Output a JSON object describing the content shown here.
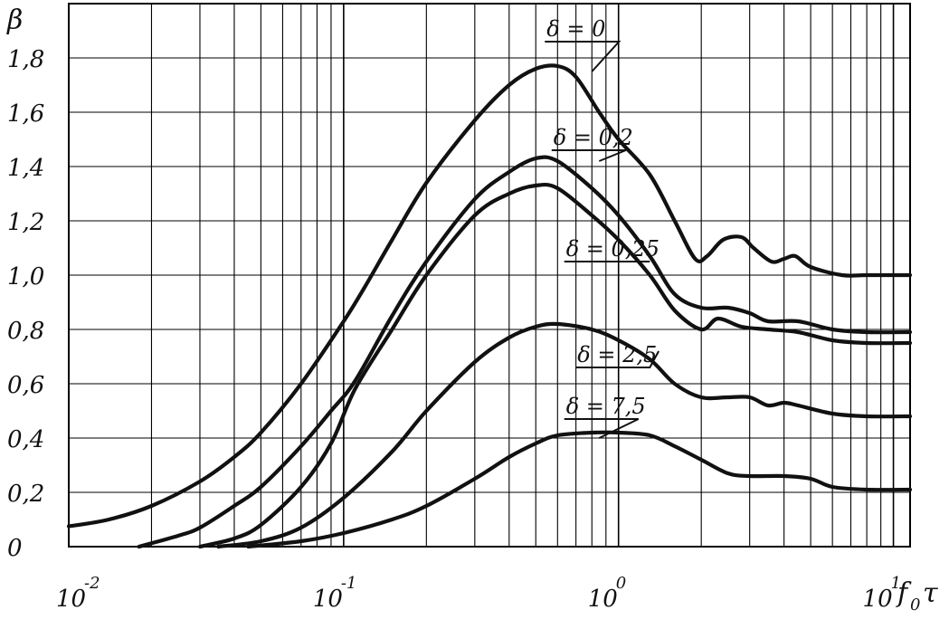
{
  "chart_data": {
    "type": "line",
    "x_scale": "log",
    "grid": true,
    "xlim": [
      0.01,
      11.5
    ],
    "ylim": [
      0,
      2.0
    ],
    "ylabel": "β",
    "xlabel": "f",
    "xlabel_sub": "0",
    "xlabel_tail": "τ",
    "y_ticks": [
      {
        "value": 0,
        "label": "0"
      },
      {
        "value": 0.2,
        "label": "0,2"
      },
      {
        "value": 0.4,
        "label": "0,4"
      },
      {
        "value": 0.6,
        "label": "0,6"
      },
      {
        "value": 0.8,
        "label": "0,8"
      },
      {
        "value": 1.0,
        "label": "1,0"
      },
      {
        "value": 1.2,
        "label": "1,2"
      },
      {
        "value": 1.4,
        "label": "1,4"
      },
      {
        "value": 1.6,
        "label": "1,6"
      },
      {
        "value": 1.8,
        "label": "1,8"
      }
    ],
    "x_ticks": [
      {
        "value": 0.01,
        "base": "10",
        "exp": "-2"
      },
      {
        "value": 0.1,
        "base": "10",
        "exp": "-1"
      },
      {
        "value": 1,
        "base": "10",
        "exp": "0"
      },
      {
        "value": 10,
        "base": "10",
        "exp": "1"
      }
    ],
    "series": [
      {
        "name": "δ = 0",
        "label_at": [
          0.85,
          1.86
        ],
        "label_anchor": [
          0.8,
          1.75
        ],
        "points": [
          [
            0.01,
            0.075
          ],
          [
            0.014,
            0.1
          ],
          [
            0.02,
            0.15
          ],
          [
            0.03,
            0.24
          ],
          [
            0.04,
            0.33
          ],
          [
            0.05,
            0.42
          ],
          [
            0.07,
            0.6
          ],
          [
            0.1,
            0.83
          ],
          [
            0.12,
            0.96
          ],
          [
            0.15,
            1.13
          ],
          [
            0.2,
            1.34
          ],
          [
            0.3,
            1.57
          ],
          [
            0.4,
            1.7
          ],
          [
            0.5,
            1.76
          ],
          [
            0.6,
            1.77
          ],
          [
            0.7,
            1.73
          ],
          [
            0.85,
            1.6
          ],
          [
            1.0,
            1.5
          ],
          [
            1.3,
            1.37
          ],
          [
            1.6,
            1.2
          ],
          [
            1.9,
            1.06
          ],
          [
            2.1,
            1.07
          ],
          [
            2.4,
            1.13
          ],
          [
            2.8,
            1.14
          ],
          [
            3.1,
            1.1
          ],
          [
            3.6,
            1.05
          ],
          [
            4.0,
            1.06
          ],
          [
            4.4,
            1.07
          ],
          [
            5.0,
            1.03
          ],
          [
            6.5,
            1.0
          ],
          [
            8.0,
            1.0
          ],
          [
            11.5,
            1.0
          ]
        ]
      },
      {
        "name": "δ = 0,2",
        "label_at": [
          0.9,
          1.46
        ],
        "label_anchor": [
          0.85,
          1.42
        ],
        "points": [
          [
            0.018,
            0.0
          ],
          [
            0.025,
            0.04
          ],
          [
            0.03,
            0.07
          ],
          [
            0.04,
            0.15
          ],
          [
            0.05,
            0.22
          ],
          [
            0.07,
            0.37
          ],
          [
            0.09,
            0.5
          ],
          [
            0.11,
            0.61
          ],
          [
            0.15,
            0.85
          ],
          [
            0.2,
            1.05
          ],
          [
            0.3,
            1.28
          ],
          [
            0.4,
            1.38
          ],
          [
            0.5,
            1.43
          ],
          [
            0.6,
            1.42
          ],
          [
            0.8,
            1.32
          ],
          [
            1.0,
            1.22
          ],
          [
            1.3,
            1.07
          ],
          [
            1.6,
            0.93
          ],
          [
            2.0,
            0.88
          ],
          [
            2.5,
            0.88
          ],
          [
            3.0,
            0.86
          ],
          [
            3.5,
            0.83
          ],
          [
            4.5,
            0.83
          ],
          [
            6.0,
            0.8
          ],
          [
            8.0,
            0.79
          ],
          [
            11.5,
            0.79
          ]
        ]
      },
      {
        "name": "δ = 0,25",
        "label_at": [
          1.0,
          1.05
        ],
        "label_anchor": [
          1.3,
          1.05
        ],
        "points": [
          [
            0.03,
            0.0
          ],
          [
            0.04,
            0.03
          ],
          [
            0.05,
            0.08
          ],
          [
            0.07,
            0.22
          ],
          [
            0.09,
            0.38
          ],
          [
            0.11,
            0.58
          ],
          [
            0.15,
            0.8
          ],
          [
            0.2,
            1.0
          ],
          [
            0.3,
            1.22
          ],
          [
            0.4,
            1.3
          ],
          [
            0.5,
            1.33
          ],
          [
            0.6,
            1.32
          ],
          [
            0.8,
            1.22
          ],
          [
            1.0,
            1.13
          ],
          [
            1.3,
            1.0
          ],
          [
            1.6,
            0.87
          ],
          [
            2.0,
            0.8
          ],
          [
            2.3,
            0.84
          ],
          [
            2.8,
            0.81
          ],
          [
            3.5,
            0.8
          ],
          [
            4.5,
            0.79
          ],
          [
            6.0,
            0.76
          ],
          [
            8.0,
            0.75
          ],
          [
            11.5,
            0.75
          ]
        ]
      },
      {
        "name": "δ = 2,5",
        "label_at": [
          1.1,
          0.66
        ],
        "label_anchor": [
          1.4,
          0.72
        ],
        "points": [
          [
            0.035,
            0.0
          ],
          [
            0.05,
            0.02
          ],
          [
            0.07,
            0.07
          ],
          [
            0.1,
            0.18
          ],
          [
            0.15,
            0.35
          ],
          [
            0.2,
            0.5
          ],
          [
            0.3,
            0.68
          ],
          [
            0.4,
            0.77
          ],
          [
            0.5,
            0.81
          ],
          [
            0.6,
            0.82
          ],
          [
            0.8,
            0.8
          ],
          [
            1.0,
            0.76
          ],
          [
            1.3,
            0.69
          ],
          [
            1.6,
            0.6
          ],
          [
            2.0,
            0.55
          ],
          [
            2.5,
            0.55
          ],
          [
            3.0,
            0.55
          ],
          [
            3.5,
            0.52
          ],
          [
            4.0,
            0.53
          ],
          [
            4.5,
            0.52
          ],
          [
            6.0,
            0.49
          ],
          [
            8.0,
            0.48
          ],
          [
            11.5,
            0.48
          ]
        ]
      },
      {
        "name": "δ = 7,5",
        "label_at": [
          1.0,
          0.47
        ],
        "label_anchor": [
          0.85,
          0.4
        ],
        "points": [
          [
            0.045,
            0.0
          ],
          [
            0.07,
            0.02
          ],
          [
            0.1,
            0.05
          ],
          [
            0.15,
            0.1
          ],
          [
            0.2,
            0.15
          ],
          [
            0.3,
            0.25
          ],
          [
            0.4,
            0.33
          ],
          [
            0.5,
            0.38
          ],
          [
            0.6,
            0.41
          ],
          [
            0.8,
            0.42
          ],
          [
            1.0,
            0.42
          ],
          [
            1.3,
            0.41
          ],
          [
            1.6,
            0.37
          ],
          [
            2.0,
            0.32
          ],
          [
            2.5,
            0.27
          ],
          [
            3.0,
            0.26
          ],
          [
            4.0,
            0.26
          ],
          [
            5.0,
            0.25
          ],
          [
            6.0,
            0.22
          ],
          [
            8.0,
            0.21
          ],
          [
            11.5,
            0.21
          ]
        ]
      }
    ]
  }
}
